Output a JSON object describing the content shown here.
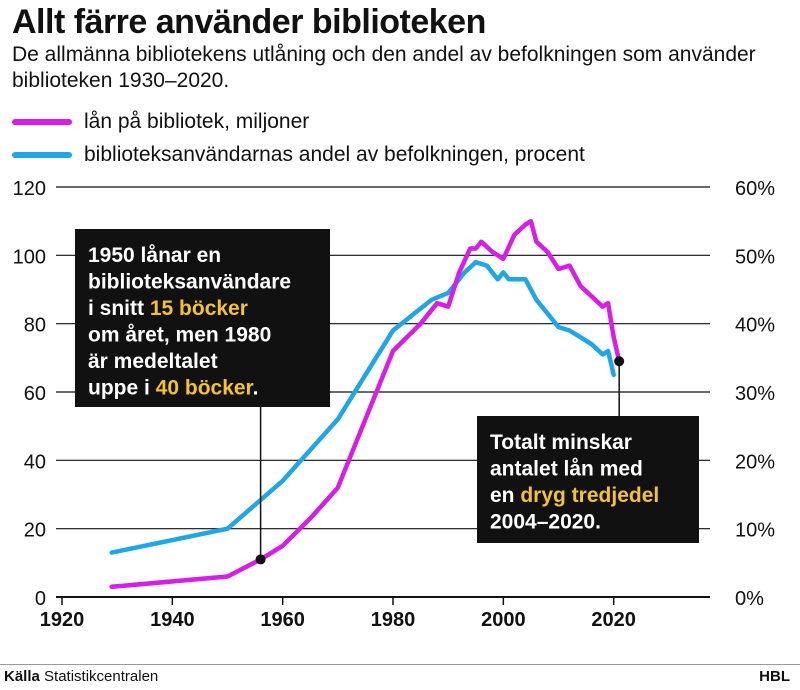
{
  "title": "Allt färre använder biblioteken",
  "subtitle": "De allmänna bibliotekens utlåning och den andel av befolkningen som använder biblioteken 1930–2020.",
  "colors": {
    "loans": "#d61ee6",
    "share": "#1fa6e6",
    "box": "#111111",
    "highlight": "#f5c230"
  },
  "annotations": [
    {
      "parts": [
        {
          "text": "1950 lånar en"
        },
        {
          "text": "biblioteksanvändare"
        },
        {
          "text": "i snitt ",
          "hl": "15 böcker"
        },
        {
          "text": "om året, men 1980"
        },
        {
          "text": "är medeltalet"
        },
        {
          "text": "uppe i ",
          "hl": "40 böcker",
          "after": "."
        }
      ]
    },
    {
      "parts": [
        {
          "text": "Totalt minskar"
        },
        {
          "text": "antalet lån med"
        },
        {
          "text": "en ",
          "hl": "dryg tredjedel"
        },
        {
          "text": "2004–2020."
        }
      ]
    }
  ],
  "footer": {
    "source_label": "Källa",
    "source": "Statistikcentralen",
    "brand": "HBL"
  },
  "chart_data": {
    "type": "line",
    "title": "Allt färre använder biblioteken",
    "xlim": [
      1920,
      2040
    ],
    "x_ticks": [
      "1920",
      "1940",
      "1960",
      "1980",
      "2000",
      "2020"
    ],
    "y_left_ticks": [
      "0",
      "20",
      "40",
      "60",
      "80",
      "100",
      "120"
    ],
    "y_right_ticks": [
      "0%",
      "10%",
      "20%",
      "30%",
      "40%",
      "50%",
      "60%"
    ],
    "ylim_left": [
      0,
      120
    ],
    "ylim_right": [
      0,
      60
    ],
    "grid": true,
    "legend_position": "top-left",
    "series": [
      {
        "name": "lån på bibliotek, miljoner",
        "axis": "left",
        "points": [
          [
            1929,
            3
          ],
          [
            1950,
            6
          ],
          [
            1956,
            11
          ],
          [
            1960,
            15
          ],
          [
            1965,
            23
          ],
          [
            1970,
            32
          ],
          [
            1975,
            52
          ],
          [
            1980,
            72
          ],
          [
            1985,
            80
          ],
          [
            1988,
            86
          ],
          [
            1990,
            85
          ],
          [
            1992,
            95
          ],
          [
            1994,
            102
          ],
          [
            1995,
            102
          ],
          [
            1996,
            104
          ],
          [
            1998,
            101
          ],
          [
            2000,
            99
          ],
          [
            2002,
            106
          ],
          [
            2004,
            109
          ],
          [
            2005,
            110
          ],
          [
            2006,
            104
          ],
          [
            2008,
            101
          ],
          [
            2010,
            96
          ],
          [
            2012,
            97
          ],
          [
            2014,
            91
          ],
          [
            2016,
            88
          ],
          [
            2018,
            85
          ],
          [
            2019,
            86
          ],
          [
            2020,
            76
          ],
          [
            2021,
            69
          ]
        ]
      },
      {
        "name": "biblioteksanvändarnas andel av befolkningen, procent",
        "axis": "right",
        "points": [
          [
            1929,
            6.5
          ],
          [
            1950,
            10
          ],
          [
            1960,
            17
          ],
          [
            1970,
            26
          ],
          [
            1980,
            39
          ],
          [
            1987,
            43.5
          ],
          [
            1990,
            44.5
          ],
          [
            1993,
            47.5
          ],
          [
            1995,
            49
          ],
          [
            1997,
            48.5
          ],
          [
            1999,
            46.5
          ],
          [
            2000,
            47.5
          ],
          [
            2001,
            46.5
          ],
          [
            2004,
            46.5
          ],
          [
            2006,
            43.5
          ],
          [
            2008,
            41.5
          ],
          [
            2010,
            39.5
          ],
          [
            2012,
            39
          ],
          [
            2014,
            38
          ],
          [
            2016,
            37
          ],
          [
            2018,
            35.5
          ],
          [
            2019,
            36
          ],
          [
            2020,
            32.5
          ]
        ]
      }
    ]
  }
}
